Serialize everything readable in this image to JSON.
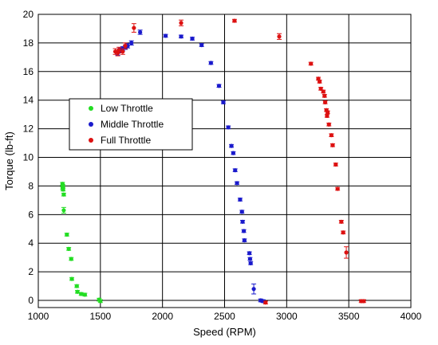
{
  "chart_data": {
    "type": "scatter",
    "title": "",
    "xlabel": "Speed (RPM)",
    "ylabel": "Torque (lb-ft)",
    "xlim": [
      1000,
      4000
    ],
    "ylim": [
      -0.5,
      20
    ],
    "xticks": [
      1000,
      1500,
      2000,
      2500,
      3000,
      3500,
      4000
    ],
    "yticks": [
      0,
      2,
      4,
      6,
      8,
      10,
      12,
      14,
      16,
      18,
      20
    ],
    "grid": true,
    "legend_position": "upper-left",
    "series": [
      {
        "name": "Low Throttle",
        "color": "#22dd22",
        "points": [
          [
            1195,
            8.15,
            0.1
          ],
          [
            1198,
            8.0,
            0.1
          ],
          [
            1196,
            7.85,
            0.1
          ],
          [
            1200,
            7.75,
            0.1
          ],
          [
            1205,
            7.4,
            0.1
          ],
          [
            1205,
            6.3,
            0.2
          ],
          [
            1230,
            4.6,
            0.1
          ],
          [
            1245,
            3.6,
            0.1
          ],
          [
            1265,
            2.9,
            0.1
          ],
          [
            1270,
            1.5,
            0.1
          ],
          [
            1310,
            1.0,
            0.1
          ],
          [
            1315,
            0.6,
            0.1
          ],
          [
            1345,
            0.45,
            0.1
          ],
          [
            1375,
            0.4,
            0.1
          ],
          [
            1490,
            0.05,
            0.1
          ],
          [
            1500,
            -0.05,
            0.1
          ]
        ]
      },
      {
        "name": "Middle Throttle",
        "color": "#1a1acc",
        "points": [
          [
            1640,
            17.3,
            0.15
          ],
          [
            1660,
            17.5,
            0.15
          ],
          [
            1680,
            17.6,
            0.15
          ],
          [
            1700,
            17.7,
            0.15
          ],
          [
            1720,
            17.8,
            0.15
          ],
          [
            1750,
            18.0,
            0.15
          ],
          [
            1820,
            18.75,
            0.15
          ],
          [
            2025,
            18.5,
            0.1
          ],
          [
            2150,
            18.45,
            0.1
          ],
          [
            2240,
            18.3,
            0.1
          ],
          [
            2315,
            17.85,
            0.1
          ],
          [
            2390,
            16.6,
            0.1
          ],
          [
            2455,
            15.0,
            0.1
          ],
          [
            2490,
            13.85,
            0.1
          ],
          [
            2530,
            12.1,
            0.1
          ],
          [
            2555,
            10.8,
            0.1
          ],
          [
            2570,
            10.3,
            0.1
          ],
          [
            2585,
            9.1,
            0.1
          ],
          [
            2600,
            8.2,
            0.1
          ],
          [
            2625,
            7.05,
            0.1
          ],
          [
            2640,
            6.2,
            0.1
          ],
          [
            2645,
            5.5,
            0.1
          ],
          [
            2655,
            4.85,
            0.1
          ],
          [
            2660,
            4.2,
            0.1
          ],
          [
            2700,
            3.3,
            0.1
          ],
          [
            2705,
            2.9,
            0.1
          ],
          [
            2710,
            2.6,
            0.1
          ],
          [
            2735,
            0.8,
            0.35
          ],
          [
            2790,
            0.0,
            0.1
          ],
          [
            2810,
            -0.05,
            0.1
          ]
        ]
      },
      {
        "name": "Full Throttle",
        "color": "#dd1111",
        "points": [
          [
            1620,
            17.4,
            0.2
          ],
          [
            1640,
            17.3,
            0.2
          ],
          [
            1650,
            17.5,
            0.2
          ],
          [
            1680,
            17.4,
            0.2
          ],
          [
            1700,
            17.8,
            0.2
          ],
          [
            1770,
            19.05,
            0.3
          ],
          [
            2150,
            19.4,
            0.2
          ],
          [
            2580,
            19.55,
            0.1
          ],
          [
            2940,
            18.45,
            0.2
          ],
          [
            3195,
            16.55,
            0.1
          ],
          [
            3255,
            15.5,
            0.1
          ],
          [
            3265,
            15.3,
            0.1
          ],
          [
            3275,
            14.8,
            0.1
          ],
          [
            3295,
            14.6,
            0.1
          ],
          [
            3305,
            14.3,
            0.1
          ],
          [
            3310,
            13.85,
            0.1
          ],
          [
            3320,
            13.3,
            0.1
          ],
          [
            3330,
            13.15,
            0.1
          ],
          [
            3325,
            12.9,
            0.1
          ],
          [
            3340,
            12.3,
            0.1
          ],
          [
            3360,
            11.55,
            0.1
          ],
          [
            3370,
            10.85,
            0.1
          ],
          [
            3395,
            9.5,
            0.1
          ],
          [
            3410,
            7.8,
            0.1
          ],
          [
            3440,
            5.5,
            0.1
          ],
          [
            3455,
            4.75,
            0.1
          ],
          [
            3480,
            3.35,
            0.4
          ],
          [
            2830,
            -0.15,
            0.1
          ],
          [
            3600,
            -0.05,
            0.1
          ],
          [
            3620,
            -0.05,
            0.1
          ]
        ]
      }
    ]
  }
}
